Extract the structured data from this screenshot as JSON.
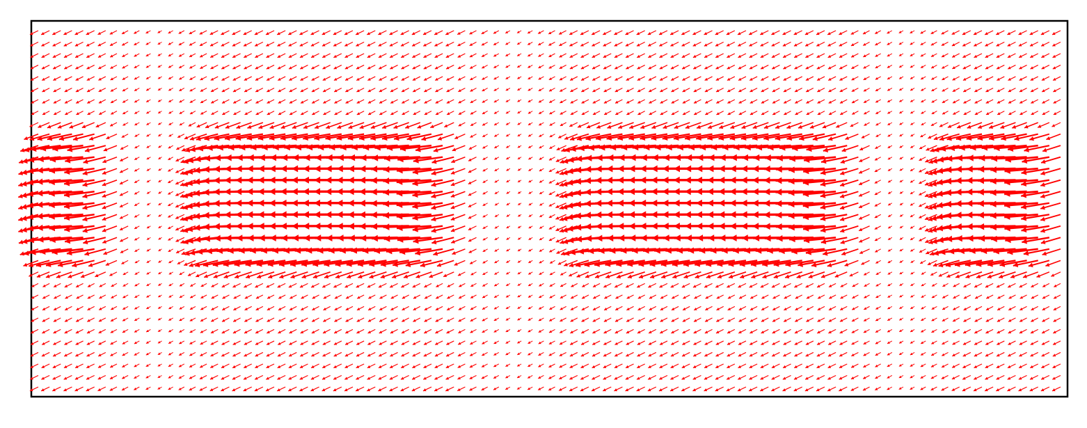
{
  "chart_data": {
    "type": "quiver",
    "title": "",
    "xlabel": "",
    "ylabel": "",
    "axis_ticks": "hidden",
    "grid": false,
    "legend": "none",
    "arrow_color": "#ff0000",
    "frame_color": "#000000",
    "background": "#ffffff",
    "field": {
      "columns": 92,
      "rows": 32,
      "x_range": [
        0,
        1
      ],
      "y_range": [
        0,
        1
      ],
      "dominant_direction": "leftward",
      "strong_bands": [
        {
          "x_range": [
            0.0,
            0.07
          ],
          "y_range": [
            0.27,
            0.67
          ],
          "max_magnitude": 1.0
        },
        {
          "x_range": [
            0.16,
            0.41
          ],
          "y_range": [
            0.27,
            0.67
          ],
          "max_magnitude": 1.0
        },
        {
          "x_range": [
            0.53,
            0.8
          ],
          "y_range": [
            0.27,
            0.67
          ],
          "max_magnitude": 1.0
        },
        {
          "x_range": [
            0.89,
            1.0
          ],
          "y_range": [
            0.27,
            0.67
          ],
          "max_magnitude": 1.0
        }
      ],
      "weak_regions": [
        {
          "x_center": 0.12,
          "magnitude": 0.08
        },
        {
          "x_center": 0.47,
          "magnitude": 0.05
        },
        {
          "x_center": 0.85,
          "magnitude": 0.08
        }
      ],
      "background_magnitude": 0.18
    }
  }
}
